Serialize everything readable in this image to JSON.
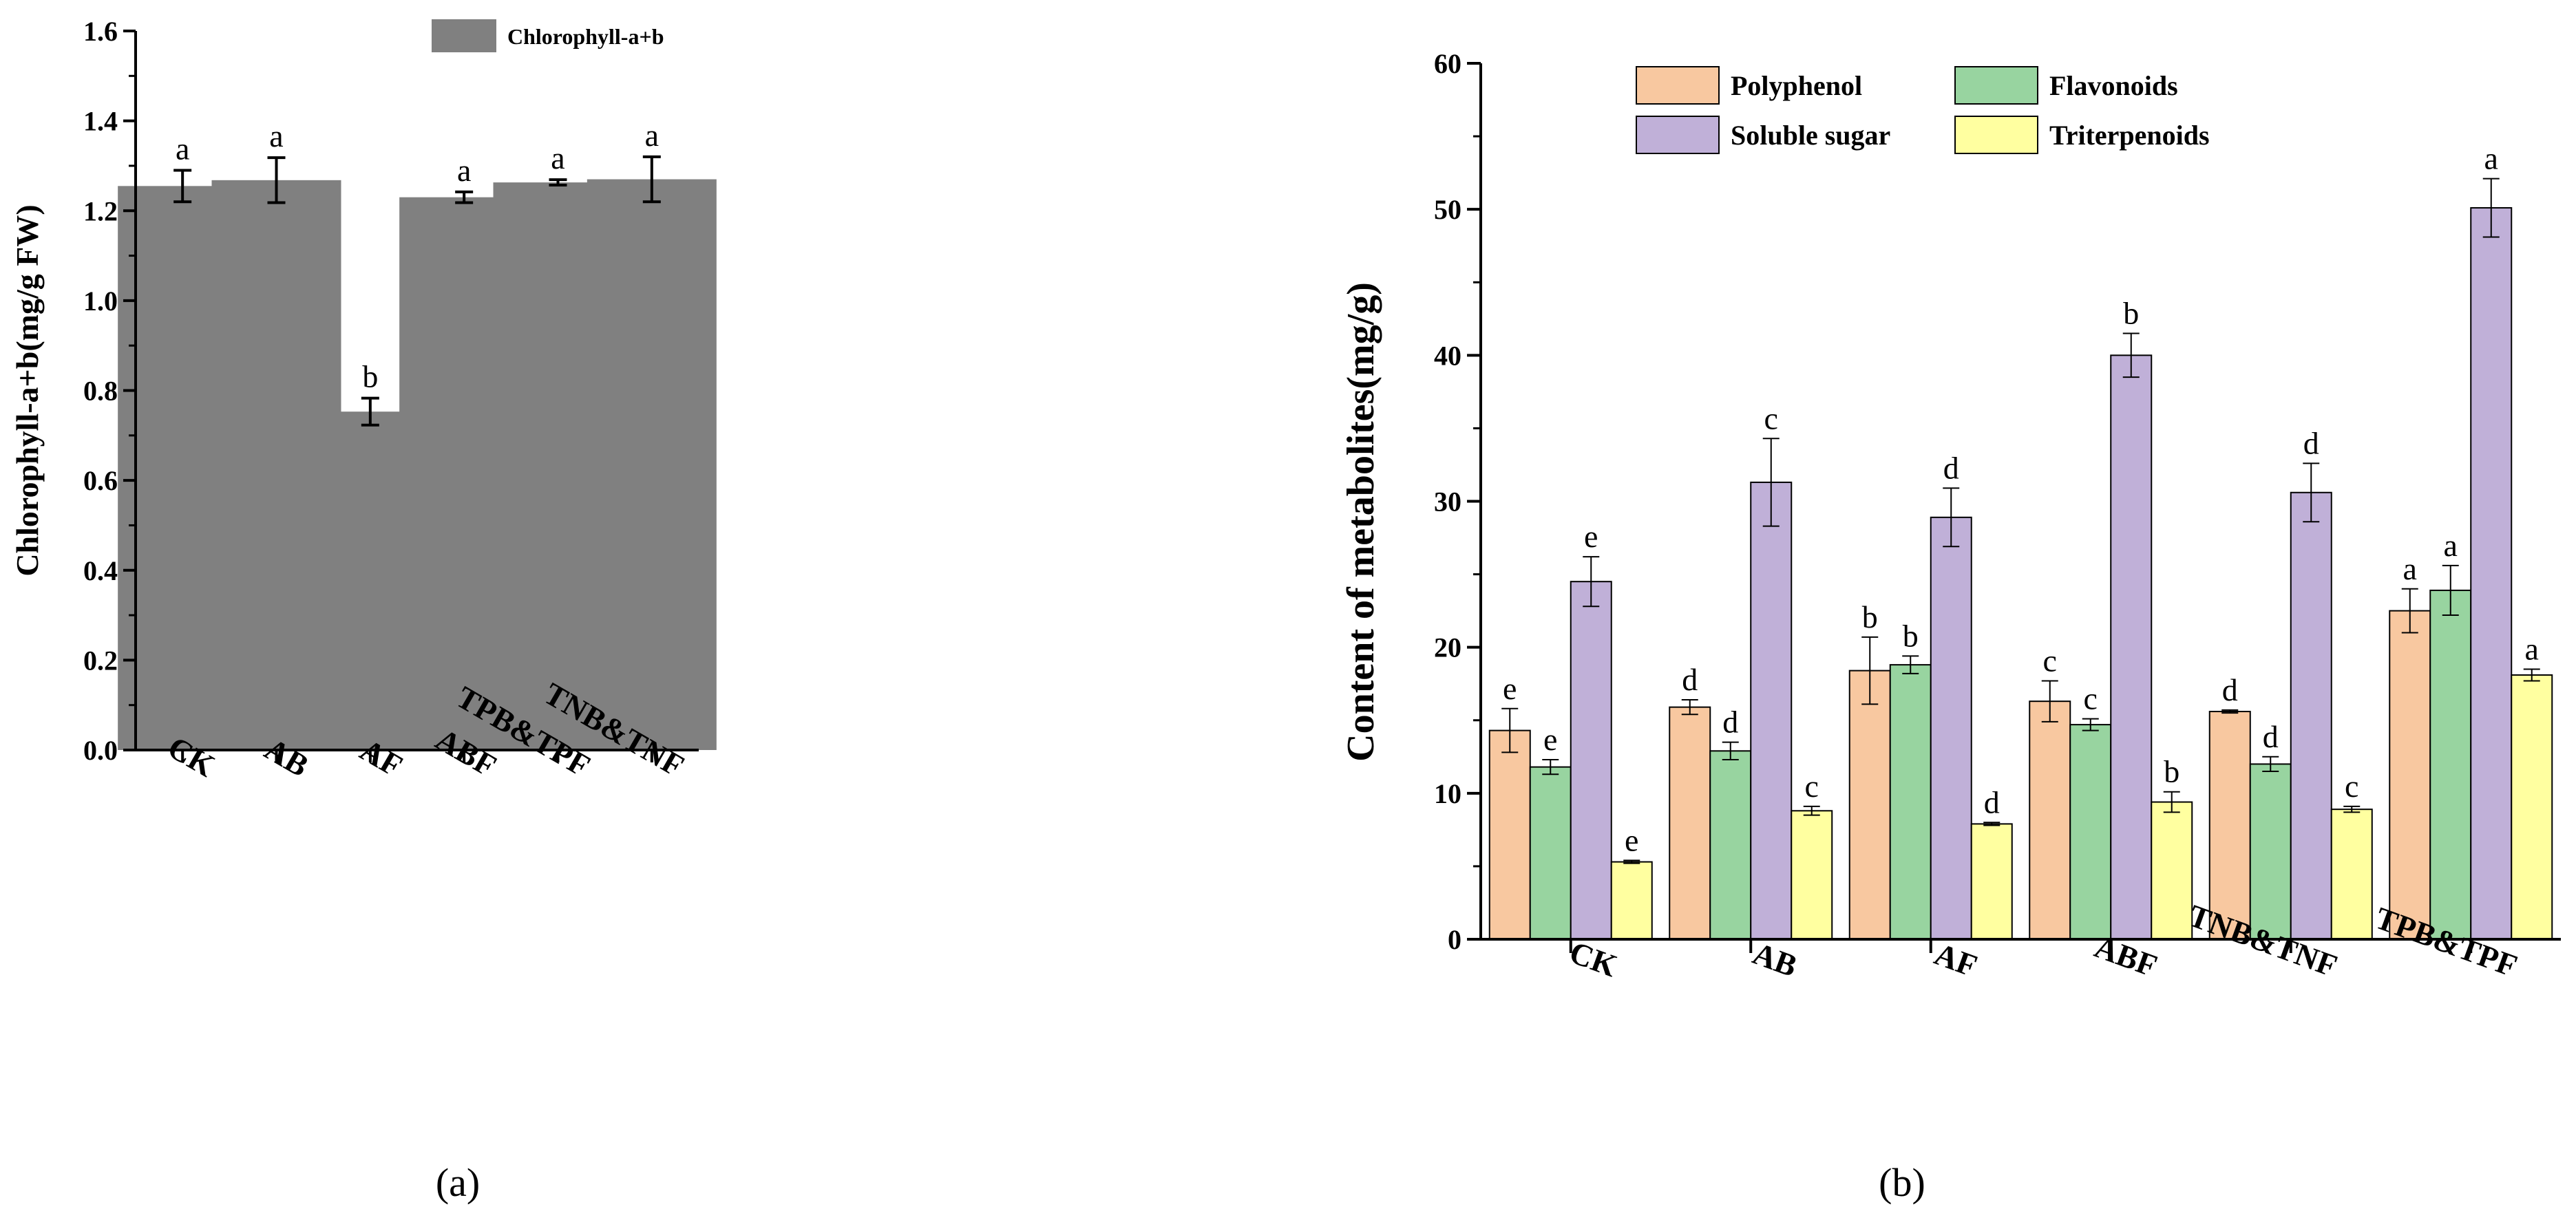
{
  "panels": {
    "a": "(a)",
    "b": "(b)"
  },
  "chart_data": [
    {
      "type": "bar",
      "title": "",
      "xlabel": "",
      "ylabel": "Chlorophyll-a+b(mg/g  FW)",
      "ylim": [
        0,
        1.6
      ],
      "yticks": [
        "0.0",
        "0.2",
        "0.4",
        "0.6",
        "0.8",
        "1.0",
        "1.2",
        "1.4",
        "1.6"
      ],
      "categories": [
        "CK",
        "AB",
        "AF",
        "ABF",
        "TPB&TPF",
        "TNB&TNF"
      ],
      "legend_position": "top-center",
      "series": [
        {
          "name": "Chlorophyll-a+b",
          "color": "#808080",
          "values": [
            1.255,
            1.268,
            0.753,
            1.23,
            1.263,
            1.27
          ],
          "errors": [
            0.035,
            0.05,
            0.03,
            0.012,
            0.006,
            0.05
          ],
          "letters": [
            "a",
            "a",
            "b",
            "a",
            "a",
            "a"
          ]
        }
      ]
    },
    {
      "type": "bar",
      "title": "",
      "xlabel": "",
      "ylabel": "Content of metabolites(mg/g)",
      "ylim": [
        0,
        60
      ],
      "yticks": [
        "0",
        "10",
        "20",
        "30",
        "40",
        "50",
        "60"
      ],
      "categories": [
        "CK",
        "AB",
        "AF",
        "ABF",
        "TNB&TNF",
        "TPB&TPF"
      ],
      "legend_position": "top-center",
      "series": [
        {
          "name": "Polyphenol",
          "color": "#F8C8A0",
          "values": [
            14.3,
            15.9,
            18.4,
            16.3,
            15.6,
            22.5
          ],
          "errors": [
            1.5,
            0.5,
            2.3,
            1.4,
            0.1,
            1.5
          ],
          "letters": [
            "e",
            "d",
            "b",
            "c",
            "d",
            "a"
          ]
        },
        {
          "name": "Flavonoids",
          "color": "#98D4A0",
          "values": [
            11.8,
            12.9,
            18.8,
            14.7,
            12.0,
            23.9
          ],
          "errors": [
            0.5,
            0.6,
            0.6,
            0.4,
            0.5,
            1.7
          ],
          "letters": [
            "e",
            "d",
            "b",
            "c",
            "d",
            "a"
          ]
        },
        {
          "name": "Soluble sugar",
          "color": "#C0B0D8",
          "values": [
            24.5,
            31.3,
            28.9,
            40.0,
            30.6,
            50.1
          ],
          "errors": [
            1.7,
            3.0,
            2.0,
            1.5,
            2.0,
            2.0
          ],
          "letters": [
            "e",
            "c",
            "d",
            "b",
            "d",
            "a"
          ]
        },
        {
          "name": "Triterpenoids",
          "color": "#FFFFA0",
          "values": [
            5.3,
            8.8,
            7.9,
            9.4,
            8.9,
            18.1
          ],
          "errors": [
            0.1,
            0.3,
            0.1,
            0.7,
            0.2,
            0.4
          ],
          "letters": [
            "e",
            "c",
            "d",
            "b",
            "c",
            "a"
          ]
        }
      ]
    }
  ]
}
